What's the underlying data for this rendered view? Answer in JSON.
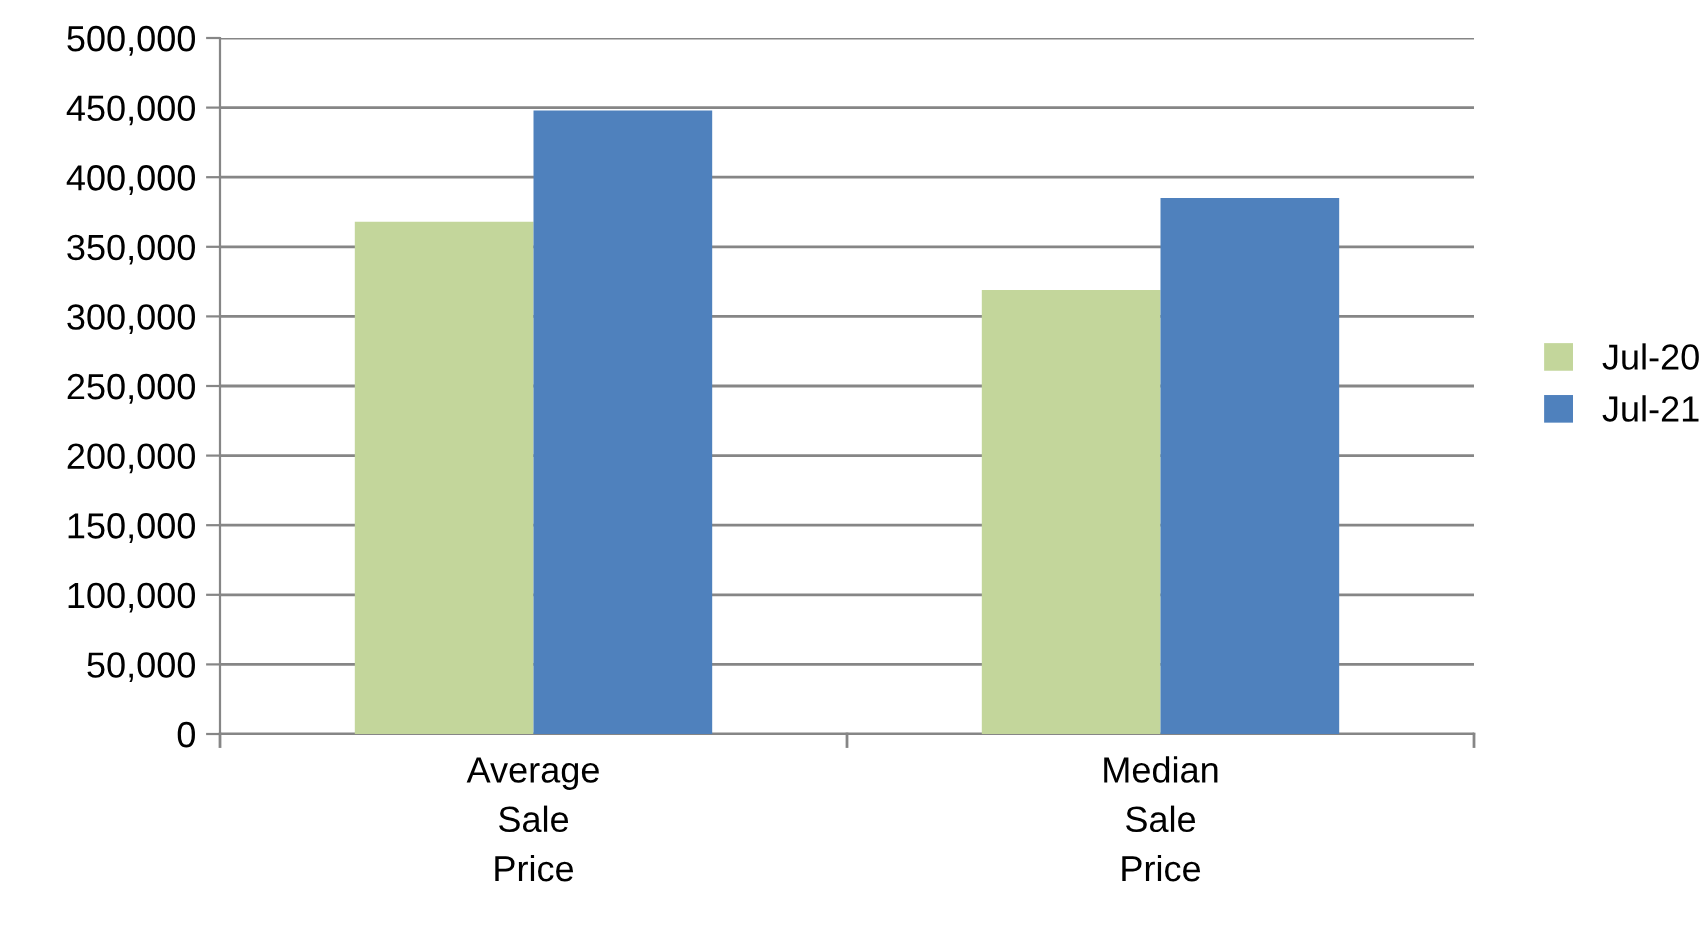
{
  "chart_data": {
    "type": "bar",
    "categories": [
      "Average Sale Price",
      "Median Sale Price"
    ],
    "series": [
      {
        "name": "Jul-20",
        "color": "#c3d69b",
        "values": [
          368000,
          319000
        ]
      },
      {
        "name": "Jul-21",
        "color": "#4f81bd",
        "values": [
          448000,
          385000
        ]
      }
    ],
    "ylim": [
      0,
      500000
    ],
    "yticks": [
      0,
      {
        "value": 50000,
        "label": "50,000"
      },
      {
        "value": 100000,
        "label": "100,000"
      },
      {
        "value": 150000,
        "label": "150,000"
      },
      {
        "value": 200000,
        "label": "200,000"
      },
      {
        "value": 250000,
        "label": "250,000"
      },
      {
        "value": 300000,
        "label": "300,000"
      },
      {
        "value": 350000,
        "label": "350,000"
      },
      {
        "value": 400000,
        "label": "400,000"
      },
      {
        "value": 450000,
        "label": "450,000"
      },
      {
        "value": 500000,
        "label": "500,000"
      }
    ],
    "grid": "y",
    "legend": "right"
  }
}
